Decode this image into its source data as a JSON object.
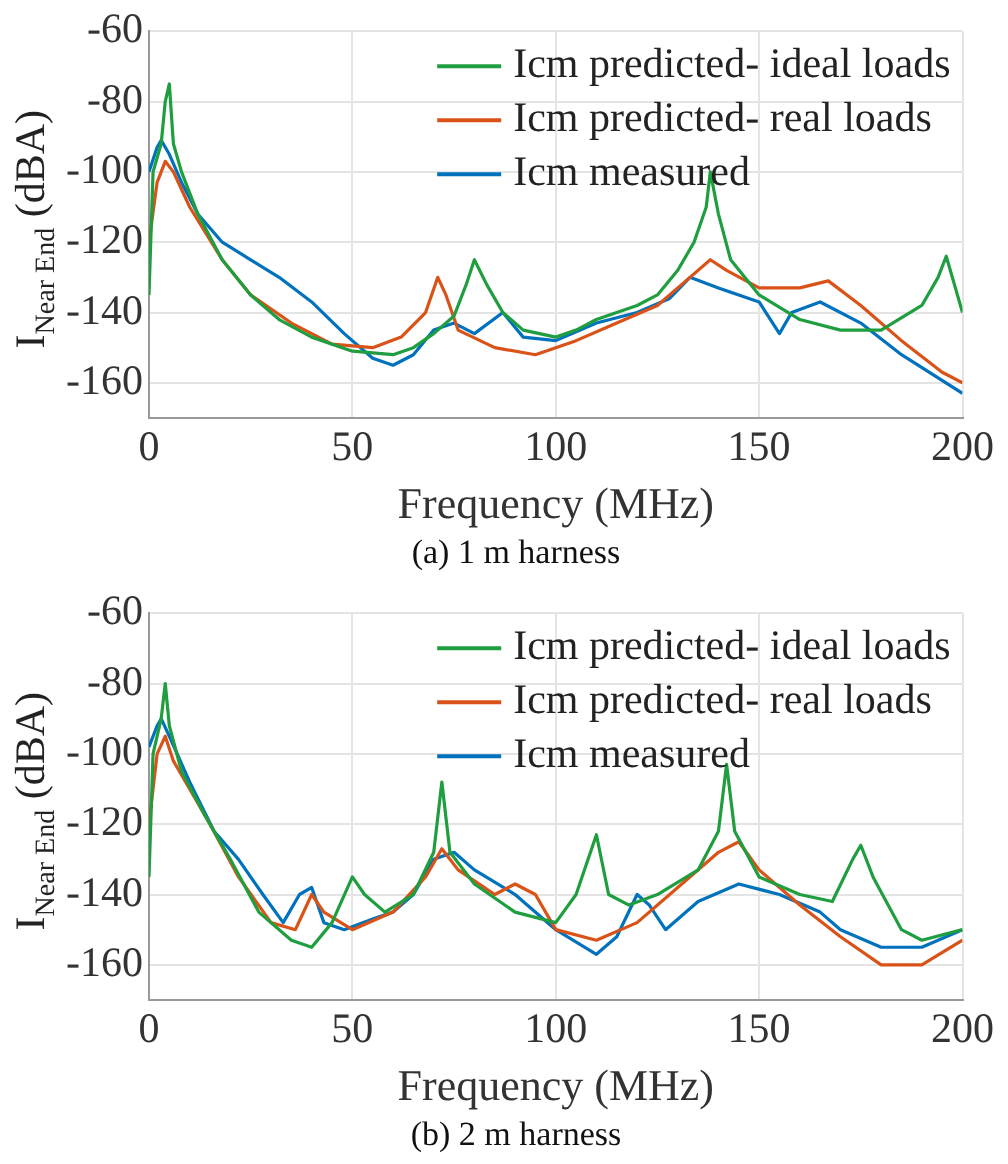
{
  "chart_data": [
    {
      "type": "line",
      "title": "(a) 1 m harness",
      "xlabel": "Frequency (MHz)",
      "ylabel": "I$_{Near End}$ (dBA)",
      "xlim": [
        0,
        200
      ],
      "xticks": [
        0,
        50,
        100,
        150,
        200
      ],
      "ylim": [
        -170,
        -60
      ],
      "yticks": [
        -60,
        -80,
        -100,
        -120,
        -140,
        -160
      ],
      "grid": true,
      "legend": "top right",
      "series": [
        {
          "name": "Icm predicted- ideal loads",
          "color": "#1f9e3f",
          "x": [
            0,
            1,
            3,
            4,
            5,
            6,
            8,
            12,
            18,
            25,
            32,
            40,
            50,
            60,
            65,
            70,
            75,
            78,
            80,
            83,
            87,
            92,
            100,
            105,
            110,
            115,
            120,
            125,
            130,
            134,
            137,
            138,
            140,
            143,
            150,
            160,
            170,
            180,
            190,
            194,
            196,
            198,
            200
          ],
          "values": [
            -135,
            -100,
            -92,
            -80,
            -75,
            -92,
            -100,
            -112,
            -125,
            -135,
            -142,
            -147,
            -151,
            -152,
            -150,
            -146,
            -141,
            -132,
            -125,
            -132,
            -140,
            -145,
            -147,
            -145,
            -142,
            -140,
            -138,
            -135,
            -128,
            -120,
            -110,
            -100,
            -112,
            -125,
            -135,
            -142,
            -145,
            -145,
            -138,
            -130,
            -124,
            -132,
            -140
          ]
        },
        {
          "name": "Icm predicted- real loads",
          "color": "#d95319",
          "x": [
            0,
            2,
            4,
            6,
            10,
            18,
            25,
            35,
            45,
            55,
            62,
            68,
            71,
            73,
            76,
            85,
            95,
            105,
            115,
            125,
            133,
            138,
            142,
            150,
            160,
            167,
            175,
            185,
            195,
            200
          ],
          "values": [
            -120,
            -103,
            -97,
            -100,
            -110,
            -125,
            -135,
            -143,
            -149,
            -150,
            -147,
            -140,
            -130,
            -135,
            -145,
            -150,
            -152,
            -148,
            -143,
            -138,
            -130,
            -125,
            -128,
            -133,
            -133,
            -131,
            -138,
            -148,
            -157,
            -160
          ]
        },
        {
          "name": "Icm measured",
          "color": "#0072bd",
          "x": [
            0,
            2,
            3,
            5,
            8,
            12,
            18,
            25,
            32,
            40,
            48,
            55,
            60,
            65,
            70,
            75,
            80,
            87,
            92,
            100,
            110,
            120,
            128,
            133,
            140,
            150,
            155,
            158,
            165,
            175,
            185,
            200
          ],
          "values": [
            -100,
            -93,
            -91,
            -95,
            -103,
            -112,
            -120,
            -125,
            -130,
            -137,
            -146,
            -153,
            -155,
            -152,
            -145,
            -143,
            -146,
            -140,
            -147,
            -148,
            -143,
            -140,
            -136,
            -130,
            -133,
            -137,
            -146,
            -140,
            -137,
            -143,
            -152,
            -163
          ]
        }
      ]
    },
    {
      "type": "line",
      "title": "(b) 2 m harness",
      "xlabel": "Frequency (MHz)",
      "ylabel": "I$_{Near End}$ (dBA)",
      "xlim": [
        0,
        200
      ],
      "xticks": [
        0,
        50,
        100,
        150,
        200
      ],
      "ylim": [
        -170,
        -60
      ],
      "yticks": [
        -60,
        -80,
        -100,
        -120,
        -140,
        -160
      ],
      "grid": true,
      "legend": "top right",
      "series": [
        {
          "name": "Icm predicted- ideal loads",
          "color": "#1f9e3f",
          "x": [
            0,
            1,
            3,
            4,
            5,
            8,
            14,
            20,
            27,
            35,
            40,
            45,
            50,
            53,
            58,
            65,
            70,
            72,
            74,
            80,
            90,
            100,
            105,
            110,
            113,
            118,
            125,
            135,
            140,
            142,
            144,
            150,
            160,
            168,
            173,
            175,
            178,
            185,
            190,
            200
          ],
          "values": [
            -135,
            -100,
            -90,
            -80,
            -92,
            -105,
            -118,
            -130,
            -145,
            -153,
            -155,
            -148,
            -135,
            -140,
            -145,
            -140,
            -128,
            -108,
            -128,
            -137,
            -145,
            -148,
            -140,
            -123,
            -140,
            -143,
            -140,
            -133,
            -122,
            -103,
            -122,
            -135,
            -140,
            -142,
            -130,
            -126,
            -135,
            -150,
            -153,
            -150
          ]
        },
        {
          "name": "Icm predicted- real loads",
          "color": "#d95319",
          "x": [
            0,
            2,
            4,
            6,
            10,
            15,
            22,
            30,
            36,
            40,
            43,
            50,
            60,
            68,
            72,
            76,
            85,
            90,
            95,
            100,
            110,
            120,
            130,
            140,
            145,
            150,
            160,
            170,
            180,
            190,
            200
          ],
          "values": [
            -120,
            -100,
            -95,
            -102,
            -110,
            -120,
            -135,
            -148,
            -150,
            -140,
            -145,
            -150,
            -145,
            -135,
            -127,
            -133,
            -140,
            -137,
            -140,
            -150,
            -153,
            -148,
            -138,
            -128,
            -125,
            -133,
            -143,
            -152,
            -160,
            -160,
            -153
          ]
        },
        {
          "name": "Icm measured",
          "color": "#0072bd",
          "x": [
            0,
            2,
            3,
            5,
            10,
            16,
            22,
            28,
            33,
            37,
            40,
            43,
            48,
            55,
            60,
            65,
            70,
            75,
            80,
            90,
            100,
            110,
            115,
            120,
            123,
            127,
            135,
            145,
            155,
            165,
            170,
            180,
            190,
            200
          ],
          "values": [
            -98,
            -92,
            -90,
            -95,
            -108,
            -122,
            -130,
            -140,
            -148,
            -140,
            -138,
            -148,
            -150,
            -147,
            -145,
            -140,
            -130,
            -128,
            -133,
            -140,
            -150,
            -157,
            -152,
            -140,
            -143,
            -150,
            -142,
            -137,
            -140,
            -145,
            -150,
            -155,
            -155,
            -150
          ]
        }
      ]
    }
  ]
}
